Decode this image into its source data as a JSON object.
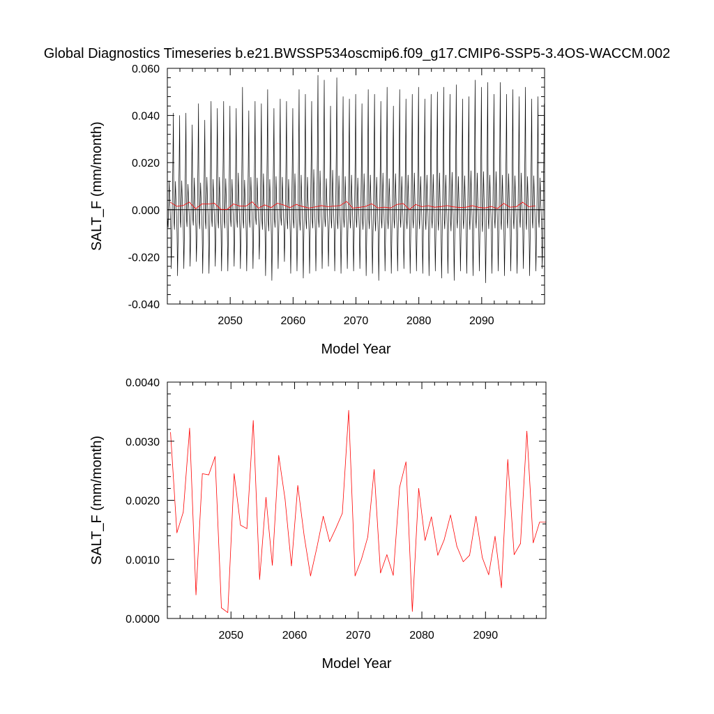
{
  "title": "Global Diagnostics Timeseries b.e21.BWSSP534oscmip6.f09_g17.CMIP6-SSP5-3.4OS-WACCM.002",
  "colors": {
    "monthly_series": "#000000",
    "annual_series": "#ff0000",
    "zero_line": "#000000"
  },
  "chart_data": [
    {
      "type": "line",
      "xlabel": "Model Year",
      "ylabel": "SALT_F (mm/month)",
      "xlim": [
        2040,
        2100
      ],
      "ylim": [
        -0.04,
        0.06
      ],
      "x_ticks": [
        2050,
        2060,
        2070,
        2080,
        2090
      ],
      "x_tick_labels": [
        "2050",
        "2060",
        "2070",
        "2080",
        "2090"
      ],
      "y_ticks": [
        -0.04,
        -0.02,
        0.0,
        0.02,
        0.04,
        0.06
      ],
      "y_tick_labels": [
        "-0.040",
        "-0.020",
        "0.000",
        "0.020",
        "0.040",
        "0.060"
      ],
      "zero_line": true,
      "grid": false,
      "series": [
        {
          "resolution": "monthly",
          "x_start": 2040.04,
          "x_step": 0.0833333,
          "annual_peak": [
            0.041,
            0.04,
            0.041,
            0.036,
            0.045,
            0.038,
            0.046,
            0.043,
            0.046,
            0.044,
            0.043,
            0.052,
            0.042,
            0.046,
            0.045,
            0.051,
            0.043,
            0.047,
            0.046,
            0.043,
            0.051,
            0.049,
            0.046,
            0.057,
            0.055,
            0.044,
            0.056,
            0.048,
            0.047,
            0.049,
            0.045,
            0.051,
            0.049,
            0.046,
            0.052,
            0.044,
            0.051,
            0.047,
            0.049,
            0.052,
            0.047,
            0.049,
            0.05,
            0.052,
            0.049,
            0.053,
            0.047,
            0.048,
            0.055,
            0.052,
            0.054,
            0.049,
            0.054,
            0.049,
            0.051,
            0.048,
            0.052,
            0.047,
            0.048,
            0.045
          ],
          "annual_trough": [
            -0.025,
            -0.028,
            -0.025,
            -0.024,
            -0.022,
            -0.027,
            -0.027,
            -0.024,
            -0.026,
            -0.026,
            -0.024,
            -0.025,
            -0.026,
            -0.025,
            -0.021,
            -0.028,
            -0.03,
            -0.025,
            -0.022,
            -0.027,
            -0.026,
            -0.029,
            -0.027,
            -0.026,
            -0.025,
            -0.024,
            -0.026,
            -0.027,
            -0.025,
            -0.026,
            -0.025,
            -0.028,
            -0.027,
            -0.03,
            -0.026,
            -0.027,
            -0.026,
            -0.025,
            -0.027,
            -0.026,
            -0.027,
            -0.028,
            -0.026,
            -0.029,
            -0.027,
            -0.03,
            -0.026,
            -0.027,
            -0.028,
            -0.026,
            -0.031,
            -0.027,
            -0.026,
            -0.028,
            -0.026,
            -0.027,
            -0.025,
            -0.028,
            -0.026,
            -0.025
          ],
          "monthly_shape": [
            -0.15,
            -0.3,
            0.05,
            0.3,
            0.1,
            -0.05,
            -0.35,
            -1.0,
            -0.45,
            0.05,
            0.45,
            1.0
          ]
        },
        {
          "resolution": "annual",
          "x": [
            2040.5,
            2041.5,
            2042.5,
            2043.5,
            2044.5,
            2045.5,
            2046.5,
            2047.5,
            2048.5,
            2049.5,
            2050.5,
            2051.5,
            2052.5,
            2053.5,
            2054.5,
            2055.5,
            2056.5,
            2057.5,
            2058.5,
            2059.5,
            2060.5,
            2061.5,
            2062.5,
            2063.5,
            2064.5,
            2065.5,
            2066.5,
            2067.5,
            2068.5,
            2069.5,
            2070.5,
            2071.5,
            2072.5,
            2073.5,
            2074.5,
            2075.5,
            2076.5,
            2077.5,
            2078.5,
            2079.5,
            2080.5,
            2081.5,
            2082.5,
            2083.5,
            2084.5,
            2085.5,
            2086.5,
            2087.5,
            2088.5,
            2089.5,
            2090.5,
            2091.5,
            2092.5,
            2093.5,
            2094.5,
            2095.5,
            2096.5,
            2097.5,
            2098.5
          ],
          "values": [
            0.00315,
            0.00145,
            0.0018,
            0.00322,
            0.0004,
            0.00245,
            0.00243,
            0.00274,
            0.00018,
            0.0001,
            0.00245,
            0.00158,
            0.00152,
            0.00335,
            0.00066,
            0.00205,
            0.0009,
            0.00276,
            0.00202,
            0.00089,
            0.00225,
            0.0014,
            0.00072,
            0.0012,
            0.00173,
            0.0013,
            0.00153,
            0.00178,
            0.00352,
            0.00072,
            0.001,
            0.00138,
            0.00252,
            0.00077,
            0.00108,
            0.00073,
            0.00222,
            0.00265,
            0.00012,
            0.0022,
            0.00132,
            0.00172,
            0.00107,
            0.00133,
            0.00175,
            0.00122,
            0.00096,
            0.00107,
            0.00173,
            0.00103,
            0.00074,
            0.00139,
            0.00052,
            0.00269,
            0.00108,
            0.00127,
            0.00317,
            0.00128,
            0.00163
          ]
        }
      ]
    },
    {
      "type": "line",
      "xlabel": "Model Year",
      "ylabel": "SALT_F (mm/month)",
      "xlim": [
        2040,
        2099.5
      ],
      "ylim": [
        0.0,
        0.004
      ],
      "x_ticks": [
        2050,
        2060,
        2070,
        2080,
        2090
      ],
      "x_tick_labels": [
        "2050",
        "2060",
        "2070",
        "2080",
        "2090"
      ],
      "y_ticks": [
        0.0,
        0.001,
        0.002,
        0.003,
        0.004
      ],
      "y_tick_labels": [
        "0.0000",
        "0.0010",
        "0.0020",
        "0.0030",
        "0.0040"
      ],
      "grid": false,
      "series": [
        {
          "resolution": "annual",
          "x": [
            2040.5,
            2041.5,
            2042.5,
            2043.5,
            2044.5,
            2045.5,
            2046.5,
            2047.5,
            2048.5,
            2049.5,
            2050.5,
            2051.5,
            2052.5,
            2053.5,
            2054.5,
            2055.5,
            2056.5,
            2057.5,
            2058.5,
            2059.5,
            2060.5,
            2061.5,
            2062.5,
            2063.5,
            2064.5,
            2065.5,
            2066.5,
            2067.5,
            2068.5,
            2069.5,
            2070.5,
            2071.5,
            2072.5,
            2073.5,
            2074.5,
            2075.5,
            2076.5,
            2077.5,
            2078.5,
            2079.5,
            2080.5,
            2081.5,
            2082.5,
            2083.5,
            2084.5,
            2085.5,
            2086.5,
            2087.5,
            2088.5,
            2089.5,
            2090.5,
            2091.5,
            2092.5,
            2093.5,
            2094.5,
            2095.5,
            2096.5,
            2097.5,
            2098.5,
            2099.5
          ],
          "values": [
            0.00315,
            0.00145,
            0.0018,
            0.00322,
            0.0004,
            0.00245,
            0.00243,
            0.00274,
            0.00018,
            0.0001,
            0.00245,
            0.00158,
            0.00152,
            0.00335,
            0.00066,
            0.00205,
            0.0009,
            0.00276,
            0.00202,
            0.00089,
            0.00225,
            0.0014,
            0.00072,
            0.0012,
            0.00173,
            0.0013,
            0.00153,
            0.00178,
            0.00352,
            0.00072,
            0.001,
            0.00138,
            0.00252,
            0.00077,
            0.00108,
            0.00073,
            0.00222,
            0.00265,
            0.00012,
            0.0022,
            0.00132,
            0.00172,
            0.00107,
            0.00133,
            0.00175,
            0.00122,
            0.00096,
            0.00107,
            0.00173,
            0.00103,
            0.00074,
            0.00139,
            0.00052,
            0.00269,
            0.00108,
            0.00127,
            0.00317,
            0.00128,
            0.00163,
            0.00163
          ]
        }
      ]
    }
  ]
}
